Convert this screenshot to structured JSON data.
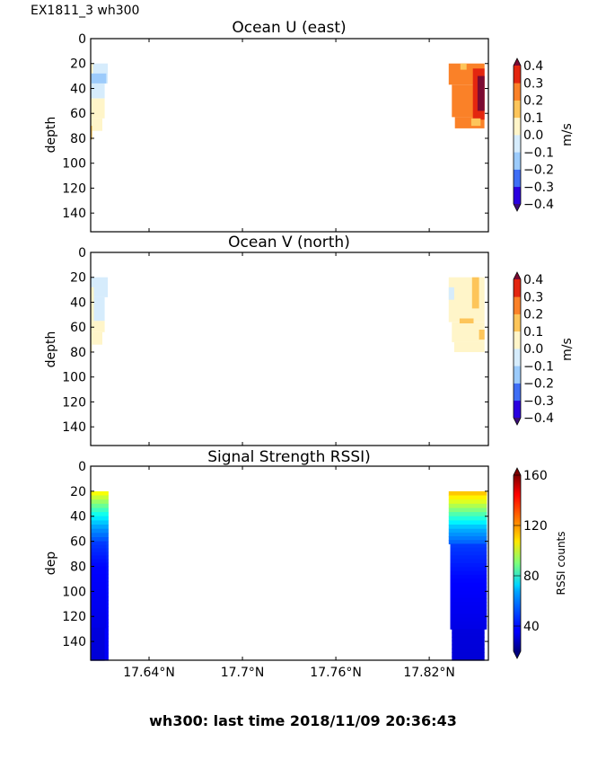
{
  "figure": {
    "corner_title": "EX1811_3 wh300",
    "footer": "wh300: last time 2018/11/09 20:36:43"
  },
  "chart_data": [
    {
      "type": "heatmap",
      "title": "Ocean U (east)",
      "ylabel": "depth",
      "xlabel": "",
      "ylim": [
        155,
        0
      ],
      "xlim": [
        17.6025,
        17.858
      ],
      "yticks": [
        "0",
        "20",
        "40",
        "60",
        "80",
        "100",
        "120",
        "140"
      ],
      "xticks": [
        "17.64°N",
        "17.7°N",
        "17.76°N",
        "17.82°N"
      ],
      "xtick_values": [
        17.64,
        17.7,
        17.76,
        17.82
      ],
      "xtick_labels_visible": false,
      "colorbar": {
        "label": "m/s",
        "ticks": [
          "0.4",
          "0.3",
          "0.2",
          "0.1",
          "0.0",
          "−0.1",
          "−0.2",
          "−0.3",
          "−0.4"
        ],
        "levels": [
          -0.4,
          -0.3,
          -0.2,
          -0.1,
          0.0,
          0.1,
          0.2,
          0.3,
          0.4
        ],
        "colors": [
          "#2a00e0",
          "#3f6ef5",
          "#9ccbfb",
          "#d6ecfc",
          "#fff5c9",
          "#fdc55a",
          "#fa8128",
          "#e3260f"
        ],
        "under_color": "#3b0e76",
        "over_color": "#7a0a32",
        "extend": "both"
      },
      "regions": [
        {
          "x": [
            17.6025,
            17.6135
          ],
          "depth": [
            20,
            36
          ],
          "value": -0.05
        },
        {
          "x": [
            17.6025,
            17.604
          ],
          "depth": [
            20,
            28
          ],
          "value": 0.05
        },
        {
          "x": [
            17.603,
            17.6125
          ],
          "depth": [
            28,
            36
          ],
          "value": -0.15
        },
        {
          "x": [
            17.6025,
            17.6115
          ],
          "depth": [
            36,
            48
          ],
          "value": -0.05
        },
        {
          "x": [
            17.6025,
            17.6115
          ],
          "depth": [
            48,
            64
          ],
          "value": 0.05
        },
        {
          "x": [
            17.6025,
            17.61
          ],
          "depth": [
            64,
            74
          ],
          "value": 0.05
        },
        {
          "x": [
            17.6025,
            17.6035
          ],
          "depth": [
            70,
            81
          ],
          "value": 0.15
        },
        {
          "x": [
            17.8325,
            17.8555
          ],
          "depth": [
            20,
            37
          ],
          "value": 0.25
        },
        {
          "x": [
            17.8345,
            17.8555
          ],
          "depth": [
            37,
            63
          ],
          "value": 0.25
        },
        {
          "x": [
            17.8365,
            17.8555
          ],
          "depth": [
            63,
            72
          ],
          "value": 0.25
        },
        {
          "x": [
            17.84,
            17.844
          ],
          "depth": [
            20,
            25
          ],
          "value": 0.15
        },
        {
          "x": [
            17.848,
            17.8555
          ],
          "depth": [
            24,
            65
          ],
          "value": 0.35
        },
        {
          "x": [
            17.851,
            17.8555
          ],
          "depth": [
            30,
            58
          ],
          "value": 0.45
        },
        {
          "x": [
            17.847,
            17.853
          ],
          "depth": [
            64,
            70
          ],
          "value": 0.15
        }
      ]
    },
    {
      "type": "heatmap",
      "title": "Ocean V (north)",
      "ylabel": "depth",
      "xlabel": "",
      "ylim": [
        155,
        0
      ],
      "xlim": [
        17.6025,
        17.858
      ],
      "yticks": [
        "0",
        "20",
        "40",
        "60",
        "80",
        "100",
        "120",
        "140"
      ],
      "xticks": [
        "17.64°N",
        "17.7°N",
        "17.76°N",
        "17.82°N"
      ],
      "xtick_values": [
        17.64,
        17.7,
        17.76,
        17.82
      ],
      "xtick_labels_visible": false,
      "colorbar": {
        "label": "m/s",
        "ticks": [
          "0.4",
          "0.3",
          "0.2",
          "0.1",
          "0.0",
          "−0.1",
          "−0.2",
          "−0.3",
          "−0.4"
        ],
        "levels": [
          -0.4,
          -0.3,
          -0.2,
          -0.1,
          0.0,
          0.1,
          0.2,
          0.3,
          0.4
        ],
        "colors": [
          "#2a00e0",
          "#3f6ef5",
          "#9ccbfb",
          "#d6ecfc",
          "#fff5c9",
          "#fdc55a",
          "#fa8128",
          "#e3260f"
        ],
        "under_color": "#3b0e76",
        "over_color": "#7a0a32",
        "extend": "both"
      },
      "regions": [
        {
          "x": [
            17.6025,
            17.6135
          ],
          "depth": [
            20,
            36
          ],
          "value": -0.05
        },
        {
          "x": [
            17.6045,
            17.6115
          ],
          "depth": [
            36,
            55
          ],
          "value": -0.05
        },
        {
          "x": [
            17.6025,
            17.6045
          ],
          "depth": [
            28,
            55
          ],
          "value": 0.05
        },
        {
          "x": [
            17.6025,
            17.6115
          ],
          "depth": [
            55,
            64
          ],
          "value": 0.05
        },
        {
          "x": [
            17.6025,
            17.61
          ],
          "depth": [
            64,
            74
          ],
          "value": 0.05
        },
        {
          "x": [
            17.6025,
            17.6035
          ],
          "depth": [
            74,
            80
          ],
          "value": 0.05
        },
        {
          "x": [
            17.8325,
            17.8555
          ],
          "depth": [
            20,
            56
          ],
          "value": 0.05
        },
        {
          "x": [
            17.8345,
            17.8555
          ],
          "depth": [
            56,
            72
          ],
          "value": 0.05
        },
        {
          "x": [
            17.836,
            17.8555
          ],
          "depth": [
            72,
            80
          ],
          "value": 0.05
        },
        {
          "x": [
            17.8325,
            17.836
          ],
          "depth": [
            28,
            38
          ],
          "value": -0.05
        },
        {
          "x": [
            17.8475,
            17.852
          ],
          "depth": [
            20,
            45
          ],
          "value": 0.15
        },
        {
          "x": [
            17.8395,
            17.8485
          ],
          "depth": [
            53,
            57
          ],
          "value": 0.15
        },
        {
          "x": [
            17.852,
            17.8555
          ],
          "depth": [
            62,
            70
          ],
          "value": 0.15
        }
      ]
    },
    {
      "type": "heatmap",
      "title": "Signal Strength RSSI)",
      "ylabel": "dep",
      "xlabel": "",
      "ylim": [
        155,
        0
      ],
      "xlim": [
        17.6025,
        17.858
      ],
      "yticks": [
        "0",
        "20",
        "40",
        "60",
        "80",
        "100",
        "120",
        "140"
      ],
      "xticks": [
        "17.64°N",
        "17.7°N",
        "17.76°N",
        "17.82°N"
      ],
      "xtick_values": [
        17.64,
        17.7,
        17.76,
        17.82
      ],
      "xtick_labels_visible": true,
      "colorbar": {
        "label": "RSSI counts",
        "ticks": [
          "160",
          "120",
          "80",
          "40"
        ],
        "tick_values": [
          160,
          120,
          80,
          40
        ],
        "range": [
          20,
          160
        ],
        "colormap": "jet",
        "extend": "both"
      },
      "columns": [
        {
          "x": [
            17.6025,
            17.614
          ],
          "depth_bottom": 60,
          "profile": [
            [
              20,
              110
            ],
            [
              30,
              90
            ],
            [
              40,
              72
            ],
            [
              50,
              58
            ],
            [
              60,
              48
            ],
            [
              80,
              40
            ],
            [
              155,
              36
            ]
          ]
        },
        {
          "x": [
            17.6025,
            17.6125
          ],
          "depth_bottom": 129,
          "profile": [
            [
              60,
              46
            ],
            [
              80,
              38
            ],
            [
              129,
              34
            ]
          ]
        },
        {
          "x": [
            17.6025,
            17.6115
          ],
          "depth_bottom": 155,
          "profile": [
            [
              129,
              33
            ],
            [
              155,
              32
            ]
          ]
        },
        {
          "x": [
            17.8325,
            17.857
          ],
          "depth_bottom": 62,
          "profile": [
            [
              20,
              118
            ],
            [
              30,
              100
            ],
            [
              40,
              80
            ],
            [
              50,
              62
            ],
            [
              62,
              50
            ]
          ]
        },
        {
          "x": [
            17.8335,
            17.857
          ],
          "depth_bottom": 130,
          "profile": [
            [
              62,
              46
            ],
            [
              90,
              38
            ],
            [
              130,
              34
            ]
          ]
        },
        {
          "x": [
            17.8345,
            17.8555
          ],
          "depth_bottom": 155,
          "profile": [
            [
              130,
              33
            ],
            [
              155,
              32
            ]
          ]
        }
      ]
    }
  ]
}
